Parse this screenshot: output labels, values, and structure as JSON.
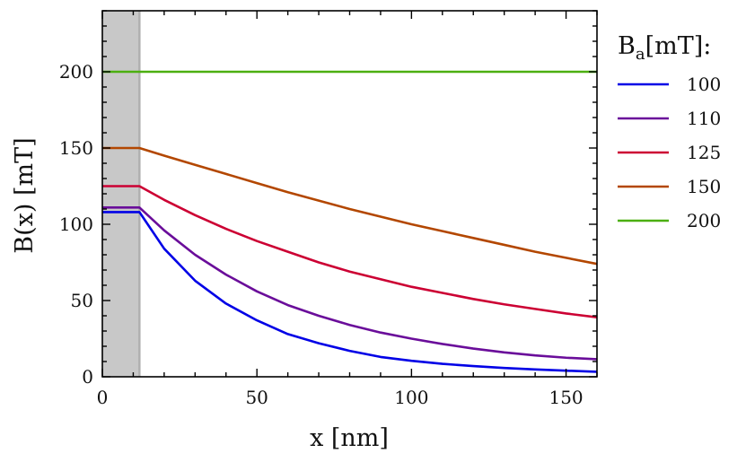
{
  "chart_data": {
    "type": "line",
    "xlabel": "x [nm]",
    "ylabel": "B(x) [mT]",
    "xlim": [
      0,
      160
    ],
    "ylim": [
      0,
      240
    ],
    "xticks": [
      0,
      50,
      100,
      150
    ],
    "yticks": [
      0,
      50,
      100,
      150,
      200
    ],
    "xminor_step": 10,
    "yminor_step": 10,
    "shaded_region": {
      "x_from": 0,
      "x_to": 12,
      "color": "#c8c8c8"
    },
    "legend": {
      "title_main": "B",
      "title_sub": "a",
      "title_rest": "[mT]:",
      "position": "right"
    },
    "series": [
      {
        "name": "100",
        "color": "#0000e6",
        "x": [
          0,
          12,
          20,
          30,
          40,
          50,
          60,
          70,
          80,
          90,
          100,
          110,
          120,
          130,
          140,
          150,
          160
        ],
        "y": [
          108,
          108,
          84,
          63,
          48,
          37,
          28,
          22,
          17,
          13,
          10.5,
          8.5,
          7,
          5.8,
          4.8,
          4,
          3.3
        ]
      },
      {
        "name": "110",
        "color": "#6a0d9a",
        "x": [
          0,
          12,
          20,
          30,
          40,
          50,
          60,
          70,
          80,
          90,
          100,
          110,
          120,
          130,
          140,
          150,
          160
        ],
        "y": [
          111,
          111,
          96,
          80,
          67,
          56,
          47,
          40,
          34,
          29,
          25,
          21.5,
          18.5,
          16,
          14,
          12.5,
          11.5
        ]
      },
      {
        "name": "125",
        "color": "#cc0033",
        "x": [
          0,
          12,
          20,
          30,
          40,
          50,
          60,
          70,
          80,
          90,
          100,
          110,
          120,
          130,
          140,
          150,
          160
        ],
        "y": [
          125,
          125,
          116,
          106,
          97,
          89,
          82,
          75,
          69,
          64,
          59,
          55,
          51,
          47.5,
          44.5,
          41.5,
          39
        ]
      },
      {
        "name": "150",
        "color": "#b34700",
        "x": [
          0,
          12,
          20,
          30,
          40,
          50,
          60,
          70,
          80,
          90,
          100,
          110,
          120,
          130,
          140,
          150,
          160
        ],
        "y": [
          150,
          150,
          145,
          139,
          133,
          127,
          121,
          115.5,
          110,
          105,
          100,
          95.5,
          91,
          86.5,
          82,
          78,
          74
        ]
      },
      {
        "name": "200",
        "color": "#4caf10",
        "x": [
          0,
          12,
          40,
          80,
          120,
          160
        ],
        "y": [
          200,
          200,
          200,
          200,
          200,
          200
        ]
      }
    ]
  }
}
